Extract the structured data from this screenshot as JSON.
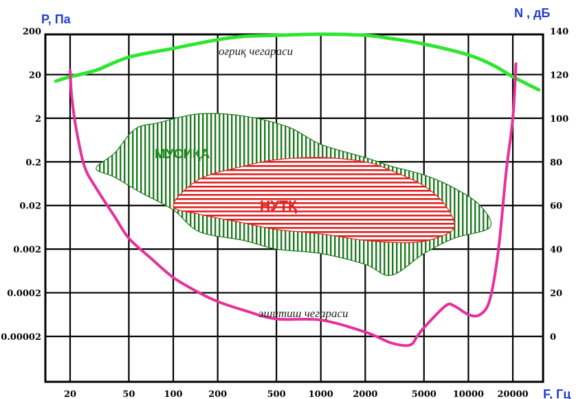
{
  "chart_data": {
    "type": "area",
    "y_left_label": "P, Па",
    "y_right_label": "N , дБ",
    "x_label": "F, Гц",
    "x_scale": "log",
    "x_ticks": [
      {
        "value": 20,
        "label": "20"
      },
      {
        "value": 50,
        "label": "50"
      },
      {
        "value": 100,
        "label": "100"
      },
      {
        "value": 200,
        "label": "200"
      },
      {
        "value": 500,
        "label": "500"
      },
      {
        "value": 1000,
        "label": "1000"
      },
      {
        "value": 2000,
        "label": "2000"
      },
      {
        "value": 5000,
        "label": "5000"
      },
      {
        "value": 10000,
        "label": "10000"
      },
      {
        "value": 20000,
        "label": "20000"
      }
    ],
    "y_right_ticks": [
      {
        "value": 140,
        "label": "140"
      },
      {
        "value": 120,
        "label": "120"
      },
      {
        "value": 100,
        "label": "100"
      },
      {
        "value": 80,
        "label": "80"
      },
      {
        "value": 60,
        "label": "60"
      },
      {
        "value": 40,
        "label": "40"
      },
      {
        "value": 20,
        "label": "20"
      },
      {
        "value": 0,
        "label": "0"
      }
    ],
    "y_left_ticks": [
      {
        "db": 140,
        "label": "200"
      },
      {
        "db": 120,
        "label": "20"
      },
      {
        "db": 100,
        "label": "2"
      },
      {
        "db": 80,
        "label": "0.2"
      },
      {
        "db": 60,
        "label": "0.02"
      },
      {
        "db": 40,
        "label": "0.002"
      },
      {
        "db": 20,
        "label": "0.0002"
      },
      {
        "db": 0,
        "label": "0.00002"
      }
    ],
    "ylim_db": [
      -23,
      145
    ],
    "xlim_hz": [
      16,
      30000
    ],
    "grid": true,
    "pain_threshold": {
      "label": "оғриқ чегараси",
      "color": "#2ee62e",
      "points": [
        [
          16,
          117
        ],
        [
          20,
          119
        ],
        [
          30,
          122
        ],
        [
          50,
          128
        ],
        [
          100,
          132
        ],
        [
          200,
          136
        ],
        [
          300,
          137.5
        ],
        [
          500,
          138
        ],
        [
          1000,
          138.5
        ],
        [
          2000,
          138
        ],
        [
          3000,
          136.5
        ],
        [
          5000,
          134
        ],
        [
          10000,
          129
        ],
        [
          15000,
          124
        ],
        [
          20000,
          119
        ],
        [
          30000,
          113
        ]
      ]
    },
    "hearing_threshold": {
      "label": "эшитиш чегараси",
      "color": "#e6309a",
      "points": [
        [
          20,
          122
        ],
        [
          20.5,
          110
        ],
        [
          22,
          95
        ],
        [
          25,
          78
        ],
        [
          30,
          68
        ],
        [
          40,
          55
        ],
        [
          50,
          45
        ],
        [
          70,
          36
        ],
        [
          100,
          27
        ],
        [
          150,
          20
        ],
        [
          200,
          16
        ],
        [
          300,
          12
        ],
        [
          500,
          8
        ],
        [
          1000,
          7.5
        ],
        [
          2000,
          2
        ],
        [
          3000,
          -3
        ],
        [
          4000,
          -4
        ],
        [
          4500,
          0
        ],
        [
          5000,
          4
        ],
        [
          7000,
          14
        ],
        [
          8000,
          14
        ],
        [
          10000,
          10
        ],
        [
          12000,
          10
        ],
        [
          14000,
          17
        ],
        [
          16000,
          40
        ],
        [
          18000,
          75
        ],
        [
          20000,
          100
        ],
        [
          21000,
          125
        ]
      ]
    },
    "music_region": {
      "label": "МУСИҚА",
      "color": "#1a7a1a",
      "points": [
        [
          30,
          77
        ],
        [
          40,
          84
        ],
        [
          55,
          95
        ],
        [
          80,
          98
        ],
        [
          150,
          102
        ],
        [
          300,
          101
        ],
        [
          600,
          96
        ],
        [
          1000,
          88
        ],
        [
          2000,
          82
        ],
        [
          3000,
          78
        ],
        [
          5000,
          74
        ],
        [
          8000,
          68
        ],
        [
          12000,
          60
        ],
        [
          14000,
          50
        ],
        [
          8000,
          45
        ],
        [
          5000,
          38
        ],
        [
          3000,
          28
        ],
        [
          2000,
          33
        ],
        [
          1000,
          38
        ],
        [
          500,
          40
        ],
        [
          300,
          44
        ],
        [
          150,
          48
        ],
        [
          100,
          58
        ],
        [
          60,
          66
        ],
        [
          40,
          73
        ]
      ]
    },
    "speech_region": {
      "label": "НУТҚ",
      "color": "#e02020",
      "points": [
        [
          100,
          60
        ],
        [
          150,
          72
        ],
        [
          300,
          78
        ],
        [
          500,
          81
        ],
        [
          1000,
          82
        ],
        [
          2000,
          80
        ],
        [
          3000,
          76
        ],
        [
          5000,
          69
        ],
        [
          7000,
          60
        ],
        [
          8000,
          50
        ],
        [
          6000,
          45
        ],
        [
          4000,
          43
        ],
        [
          2000,
          44
        ],
        [
          1000,
          47
        ],
        [
          500,
          49
        ],
        [
          300,
          52
        ],
        [
          150,
          56
        ]
      ]
    }
  }
}
